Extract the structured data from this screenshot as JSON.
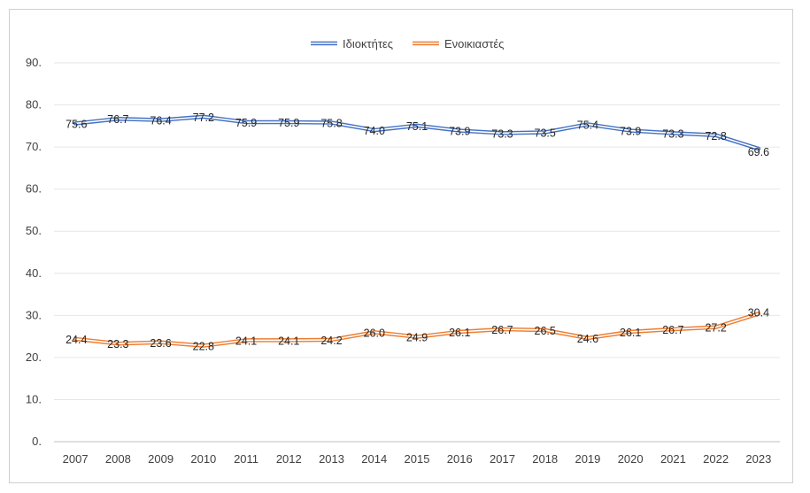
{
  "chart_data": {
    "type": "line",
    "title": "",
    "xlabel": "",
    "ylabel": "",
    "x": [
      "2007",
      "2008",
      "2009",
      "2010",
      "2011",
      "2012",
      "2013",
      "2014",
      "2015",
      "2016",
      "2017",
      "2018",
      "2019",
      "2020",
      "2021",
      "2022",
      "2023"
    ],
    "ylim": [
      0,
      90
    ],
    "yticks": [
      "0.",
      "10.",
      "20.",
      "30.",
      "40.",
      "50.",
      "60.",
      "70.",
      "80.",
      "90."
    ],
    "grid": true,
    "legend_position": "top-center",
    "series": [
      {
        "name": "Ιδιοκτήτες",
        "color": "#4472c4",
        "values": [
          75.6,
          76.7,
          76.4,
          77.2,
          75.9,
          75.9,
          75.8,
          74.0,
          75.1,
          73.9,
          73.3,
          73.5,
          75.4,
          73.9,
          73.3,
          72.8,
          69.6
        ],
        "labels": [
          "75.6",
          "76.7",
          "76.4",
          "77.2",
          "75.9",
          "75.9",
          "75.8",
          "74.0",
          "75.1",
          "73.9",
          "73.3",
          "73.5",
          "75.4",
          "73.9",
          "73.3",
          "72.8",
          "69.6"
        ]
      },
      {
        "name": "Ενοικιαστές",
        "color": "#ed7d31",
        "values": [
          24.4,
          23.3,
          23.6,
          22.8,
          24.1,
          24.1,
          24.2,
          26.0,
          24.9,
          26.1,
          26.7,
          26.5,
          24.6,
          26.1,
          26.7,
          27.2,
          30.4
        ],
        "labels": [
          "24.4",
          "23.3",
          "23.6",
          "22.8",
          "24.1",
          "24.1",
          "24.2",
          "26.0",
          "24.9",
          "26.1",
          "26.7",
          "26.5",
          "24.6",
          "26.1",
          "26.7",
          "27.2",
          "30.4"
        ]
      }
    ]
  }
}
